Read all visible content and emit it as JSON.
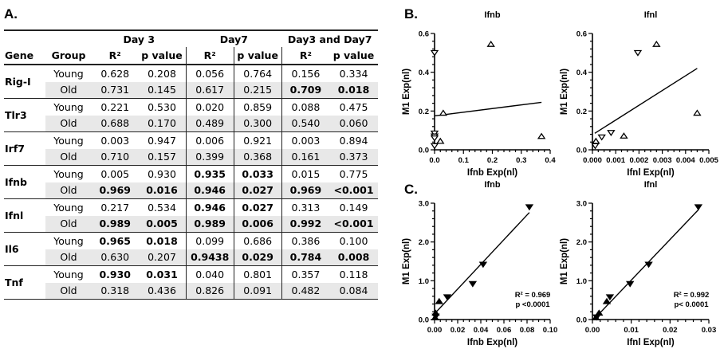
{
  "panels": {
    "a": "A.",
    "b": "B.",
    "c": "C."
  },
  "table": {
    "groups": [
      "Day 3",
      "Day7",
      "Day3 and Day7"
    ],
    "headers": [
      "Gene",
      "Group",
      "R²",
      "p value",
      "R²",
      "p value",
      "R²",
      "p value"
    ],
    "rows": [
      {
        "gene": "Rig-I",
        "group": "Young",
        "values": [
          "0.628",
          "0.208",
          "0.056",
          "0.764",
          "0.156",
          "0.334"
        ],
        "bold": [
          false,
          false,
          false,
          false,
          false,
          false
        ]
      },
      {
        "gene": "",
        "group": "Old",
        "values": [
          "0.731",
          "0.145",
          "0.617",
          "0.215",
          "0.709",
          "0.018"
        ],
        "bold": [
          false,
          false,
          false,
          false,
          true,
          true
        ]
      },
      {
        "gene": "Tlr3",
        "group": "Young",
        "values": [
          "0.221",
          "0.530",
          "0.020",
          "0.859",
          "0.088",
          "0.475"
        ],
        "bold": [
          false,
          false,
          false,
          false,
          false,
          false
        ]
      },
      {
        "gene": "",
        "group": "Old",
        "values": [
          "0.688",
          "0.170",
          "0.489",
          "0.300",
          "0.540",
          "0.060"
        ],
        "bold": [
          false,
          false,
          false,
          false,
          false,
          false
        ]
      },
      {
        "gene": "Irf7",
        "group": "Young",
        "values": [
          "0.003",
          "0.947",
          "0.006",
          "0.921",
          "0.003",
          "0.894"
        ],
        "bold": [
          false,
          false,
          false,
          false,
          false,
          false
        ]
      },
      {
        "gene": "",
        "group": "Old",
        "values": [
          "0.710",
          "0.157",
          "0.399",
          "0.368",
          "0.161",
          "0.373"
        ],
        "bold": [
          false,
          false,
          false,
          false,
          false,
          false
        ]
      },
      {
        "gene": "Ifnb",
        "group": "Young",
        "values": [
          "0.005",
          "0.930",
          "0.935",
          "0.033",
          "0.015",
          "0.775"
        ],
        "bold": [
          false,
          false,
          true,
          true,
          false,
          false
        ]
      },
      {
        "gene": "",
        "group": "Old",
        "values": [
          "0.969",
          "0.016",
          "0.946",
          "0.027",
          "0.969",
          "<0.001"
        ],
        "bold": [
          true,
          true,
          true,
          true,
          true,
          true
        ]
      },
      {
        "gene": "Ifnl",
        "group": "Young",
        "values": [
          "0.217",
          "0.534",
          "0.946",
          "0.027",
          "0.313",
          "0.149"
        ],
        "bold": [
          false,
          false,
          true,
          true,
          false,
          false
        ]
      },
      {
        "gene": "",
        "group": "Old",
        "values": [
          "0.989",
          "0.005",
          "0.989",
          "0.006",
          "0.992",
          "<0.001"
        ],
        "bold": [
          true,
          true,
          true,
          true,
          true,
          true
        ]
      },
      {
        "gene": "Il6",
        "group": "Young",
        "values": [
          "0.965",
          "0.018",
          "0.099",
          "0.686",
          "0.386",
          "0.100"
        ],
        "bold": [
          true,
          true,
          false,
          false,
          false,
          false
        ]
      },
      {
        "gene": "",
        "group": "Old",
        "values": [
          "0.630",
          "0.207",
          "0.9438",
          "0.029",
          "0.784",
          "0.008"
        ],
        "bold": [
          false,
          false,
          true,
          true,
          true,
          true
        ]
      },
      {
        "gene": "Tnf",
        "group": "Young",
        "values": [
          "0.930",
          "0.031",
          "0.040",
          "0.801",
          "0.357",
          "0.118"
        ],
        "bold": [
          true,
          true,
          false,
          false,
          false,
          false
        ]
      },
      {
        "gene": "",
        "group": "Old",
        "values": [
          "0.318",
          "0.436",
          "0.826",
          "0.091",
          "0.482",
          "0.084"
        ],
        "bold": [
          false,
          false,
          false,
          false,
          false,
          false
        ]
      }
    ]
  },
  "chart_data": [
    {
      "id": "b-ifnb",
      "panel": "B",
      "type": "scatter",
      "title": "Ifnb",
      "xlabel": "Ifnb Exp(nl)",
      "ylabel": "M1 Exp(nl)",
      "xlim": [
        0,
        0.4
      ],
      "ylim": [
        0,
        0.6
      ],
      "xticks": [
        "0.0",
        "0.1",
        "0.2",
        "0.3",
        "0.4"
      ],
      "yticks": [
        "0.0",
        "0.2",
        "0.4",
        "0.6"
      ],
      "series": [
        {
          "name": "down-triangle",
          "marker": "tri-down-open",
          "points": [
            [
              0.0,
              0.5
            ],
            [
              0.0,
              0.085
            ],
            [
              0.0,
              0.07
            ],
            [
              0.0,
              0.06
            ],
            [
              0.0,
              0.02
            ]
          ]
        },
        {
          "name": "up-triangle",
          "marker": "tri-up-open",
          "points": [
            [
              0.195,
              0.545
            ],
            [
              0.03,
              0.19
            ],
            [
              0.02,
              0.045
            ],
            [
              0.37,
              0.07
            ]
          ]
        }
      ],
      "fit": {
        "x": [
          0.0,
          0.37
        ],
        "y": [
          0.175,
          0.245
        ]
      },
      "annotation": []
    },
    {
      "id": "b-ifnl",
      "panel": "B",
      "type": "scatter",
      "title": "Ifnl",
      "xlabel": "Ifnl Exp(nl)",
      "ylabel": "M1 Exp(nl)",
      "xlim": [
        0,
        0.005
      ],
      "ylim": [
        0,
        0.6
      ],
      "xticks": [
        "0.000",
        "0.001",
        "0.002",
        "0.003",
        "0.004",
        "0.005"
      ],
      "yticks": [
        "0.0",
        "0.2",
        "0.4",
        "0.6"
      ],
      "series": [
        {
          "name": "down-triangle",
          "marker": "tri-down-open",
          "points": [
            [
              0.00195,
              0.5
            ],
            [
              0.0008,
              0.088
            ],
            [
              0.0004,
              0.065
            ],
            [
              0.00012,
              0.02
            ]
          ]
        },
        {
          "name": "up-triangle",
          "marker": "tri-up-open",
          "points": [
            [
              0.00275,
              0.545
            ],
            [
              0.0045,
              0.19
            ],
            [
              0.00135,
              0.072
            ],
            [
              0.00015,
              0.045
            ]
          ]
        }
      ],
      "fit": {
        "x": [
          0.0001,
          0.0045
        ],
        "y": [
          0.085,
          0.42
        ]
      },
      "annotation": []
    },
    {
      "id": "c-ifnb",
      "panel": "C",
      "type": "scatter",
      "title": "Ifnb",
      "xlabel": "Ifnb Exp(nl)",
      "ylabel": "M1 Exp(nl)",
      "xlim": [
        0,
        0.1
      ],
      "ylim": [
        0,
        3.0
      ],
      "xticks": [
        "0.00",
        "0.02",
        "0.04",
        "0.06",
        "0.08",
        "0.10"
      ],
      "yticks": [
        "0.0",
        "1.0",
        "2.0",
        "3.0"
      ],
      "series": [
        {
          "name": "down-triangle",
          "marker": "tri-down-filled",
          "points": [
            [
              0.082,
              2.9
            ],
            [
              0.042,
              1.42
            ],
            [
              0.033,
              0.92
            ],
            [
              0.011,
              0.58
            ],
            [
              0.001,
              0.08
            ]
          ]
        },
        {
          "name": "up-triangle",
          "marker": "tri-up-filled",
          "points": [
            [
              0.004,
              0.47
            ],
            [
              0.001,
              0.17
            ],
            [
              0.0005,
              0.05
            ]
          ]
        }
      ],
      "fit": {
        "x": [
          0.0,
          0.082
        ],
        "y": [
          0.15,
          2.76
        ]
      },
      "annotation": [
        "R² = 0.969",
        "p <0.0001"
      ]
    },
    {
      "id": "c-ifnl",
      "panel": "C",
      "type": "scatter",
      "title": "Ifnl",
      "xlabel": "Ifnl Exp(nl)",
      "ylabel": "M1 Exp(nl)",
      "xlim": [
        0,
        0.03
      ],
      "ylim": [
        0,
        3.0
      ],
      "xticks": [
        "0.00",
        "0.01",
        "0.02",
        "0.03"
      ],
      "yticks": [
        "0.0",
        "1.0",
        "2.0",
        "3.0"
      ],
      "series": [
        {
          "name": "down-triangle",
          "marker": "tri-down-filled",
          "points": [
            [
              0.0273,
              2.9
            ],
            [
              0.0145,
              1.42
            ],
            [
              0.0097,
              0.92
            ],
            [
              0.0045,
              0.58
            ],
            [
              0.0011,
              0.06
            ]
          ]
        },
        {
          "name": "up-triangle",
          "marker": "tri-up-filled",
          "points": [
            [
              0.0037,
              0.47
            ],
            [
              0.0017,
              0.17
            ],
            [
              0.0009,
              0.05
            ]
          ]
        }
      ],
      "fit": {
        "x": [
          0.0008,
          0.0273
        ],
        "y": [
          0.05,
          2.83
        ]
      },
      "annotation": [
        "R² = 0.992",
        "p< 0.0001"
      ]
    }
  ]
}
